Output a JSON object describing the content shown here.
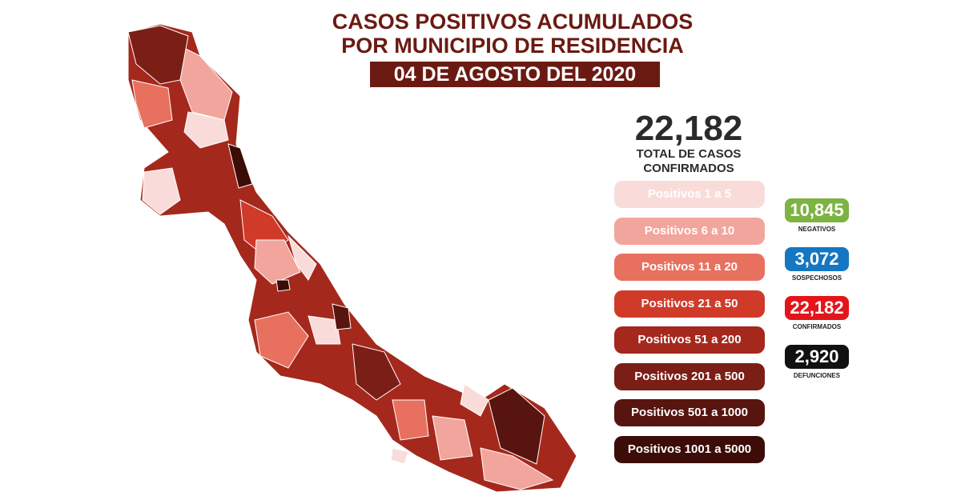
{
  "header": {
    "title_lines": [
      "CASOS POSITIVOS ACUMULADOS",
      "POR MUNICIPIO DE RESIDENCIA"
    ],
    "date": "04 DE AGOSTO DEL 2020"
  },
  "total": {
    "value": "22,182",
    "label_lines": [
      "TOTAL DE CASOS",
      "CONFIRMADOS"
    ]
  },
  "legend": [
    {
      "label": "Positivos 1 a 5",
      "color": "#f9dcd9"
    },
    {
      "label": "Positivos 6 a 10",
      "color": "#f2a59c"
    },
    {
      "label": "Positivos 11 a 20",
      "color": "#e8705f"
    },
    {
      "label": "Positivos 21 a 50",
      "color": "#d03a29"
    },
    {
      "label": "Positivos 51 a 200",
      "color": "#a5281c"
    },
    {
      "label": "Positivos 201 a 500",
      "color": "#7b1e16"
    },
    {
      "label": "Positivos 501 a 1000",
      "color": "#58140e"
    },
    {
      "label": "Positivos 1001 a 5000",
      "color": "#3c0c08"
    }
  ],
  "stats": [
    {
      "value": "10,845",
      "label": "NEGATIVOS",
      "color": "#7db342"
    },
    {
      "value": "3,072",
      "label": "SOSPECHOSOS",
      "color": "#1577c2"
    },
    {
      "value": "22,182",
      "label": "CONFIRMADOS",
      "color": "#e5141b"
    },
    {
      "value": "2,920",
      "label": "DEFUNCIONES",
      "color": "#111111"
    }
  ]
}
